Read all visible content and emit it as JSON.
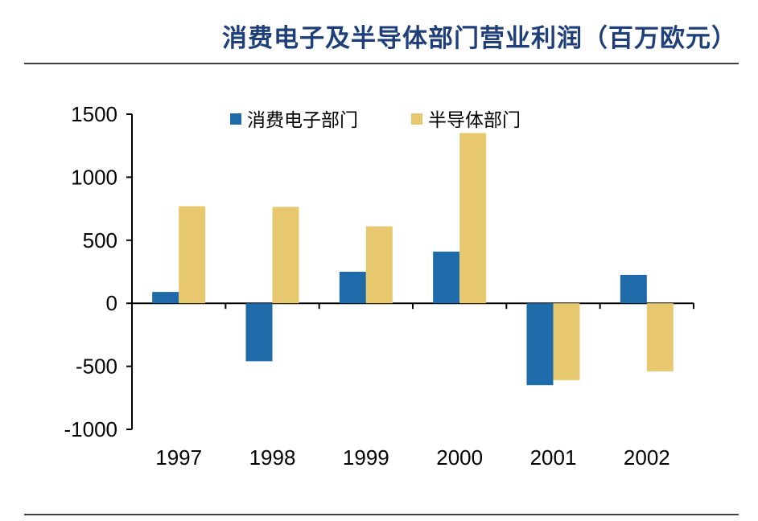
{
  "title": "消费电子及半导体部门营业利润（百万欧元）",
  "colors": {
    "title": "#1f3f7a",
    "rule": "#000000",
    "axis": "#000000"
  },
  "chart_data": {
    "type": "bar",
    "title": "消费电子及半导体部门营业利润（百万欧元）",
    "xlabel": "",
    "ylabel": "",
    "categories": [
      "1997",
      "1998",
      "1999",
      "2000",
      "2001",
      "2002"
    ],
    "series": [
      {
        "name": "消费电子部门",
        "color": "#1f6aa8",
        "values": [
          90,
          -460,
          250,
          410,
          -650,
          225
        ]
      },
      {
        "name": "半导体部门",
        "color": "#e8c86e",
        "values": [
          770,
          765,
          610,
          1350,
          -610,
          -540
        ]
      }
    ],
    "ylim": [
      -1000,
      1500
    ],
    "yticks": [
      1500,
      1000,
      500,
      0,
      -500,
      -1000
    ],
    "grid": false,
    "legend_position": "top"
  }
}
